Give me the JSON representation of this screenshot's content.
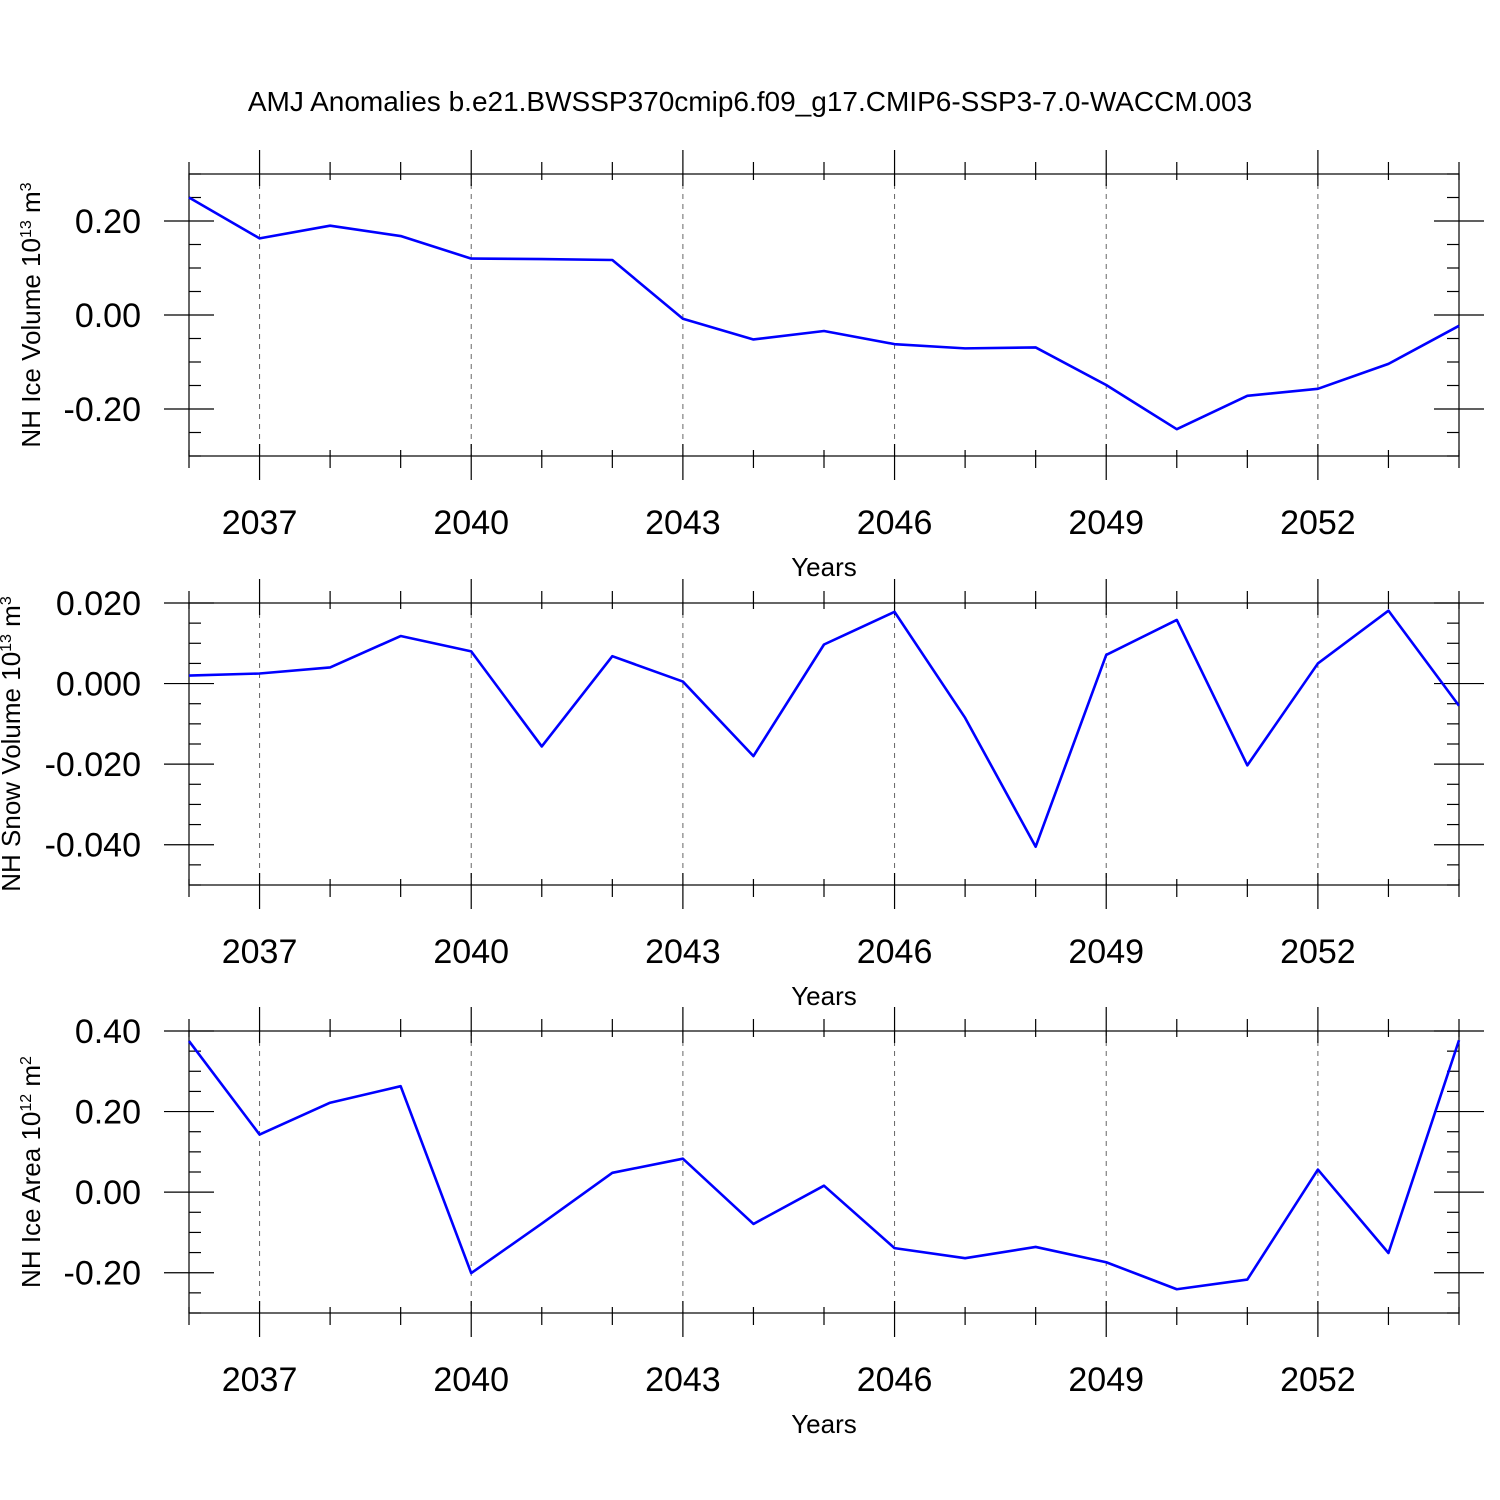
{
  "title": "AMJ Anomalies b.e21.BWSSP370cmip6.f09_g17.CMIP6-SSP3-7.0-WACCM.003",
  "chart_data": [
    {
      "type": "line",
      "title": "AMJ Anomalies b.e21.BWSSP370cmip6.f09_g17.CMIP6-SSP3-7.0-WACCM.003",
      "xlabel": "Years",
      "ylabel": "NH Ice Volume 10",
      "ylabel_exp": "13",
      "ylabel_unit": "m",
      "ylabel_unit_exp": "3",
      "xlim": [
        2036,
        2054
      ],
      "ylim": [
        -0.3,
        0.3
      ],
      "x_ticks": [
        2037,
        2040,
        2043,
        2046,
        2049,
        2052
      ],
      "x_tick_labels": [
        "2037",
        "2040",
        "2043",
        "2046",
        "2049",
        "2052"
      ],
      "y_ticks": [
        -0.2,
        0.0,
        0.2
      ],
      "y_tick_labels": [
        "-0.20",
        "0.00",
        "0.20"
      ],
      "y_minor_step": 0.05,
      "grid": "vertical dashed at major x ticks",
      "x": [
        2036,
        2037,
        2038,
        2039,
        2040,
        2041,
        2042,
        2043,
        2044,
        2045,
        2046,
        2047,
        2048,
        2049,
        2050,
        2051,
        2052,
        2053,
        2054
      ],
      "series": [
        {
          "name": "NH Ice Volume",
          "color": "#0000ff",
          "values": [
            0.25,
            0.163,
            0.19,
            0.168,
            0.12,
            0.119,
            0.117,
            -0.008,
            -0.052,
            -0.034,
            -0.062,
            -0.071,
            -0.069,
            -0.149,
            -0.243,
            -0.172,
            -0.157,
            -0.104,
            -0.023
          ]
        }
      ]
    },
    {
      "type": "line",
      "xlabel": "Years",
      "ylabel": "NH Snow Volume 10",
      "ylabel_exp": "13",
      "ylabel_unit": "m",
      "ylabel_unit_exp": "3",
      "xlim": [
        2036,
        2054
      ],
      "ylim": [
        -0.05,
        0.02
      ],
      "x_ticks": [
        2037,
        2040,
        2043,
        2046,
        2049,
        2052
      ],
      "x_tick_labels": [
        "2037",
        "2040",
        "2043",
        "2046",
        "2049",
        "2052"
      ],
      "y_ticks": [
        -0.04,
        -0.02,
        0.0,
        0.02
      ],
      "y_tick_labels": [
        "-0.040",
        "-0.020",
        "0.000",
        "0.020"
      ],
      "y_minor_step": 0.005,
      "grid": "vertical dashed at major x ticks",
      "x": [
        2036,
        2037,
        2038,
        2039,
        2040,
        2041,
        2042,
        2043,
        2044,
        2045,
        2046,
        2047,
        2048,
        2049,
        2050,
        2051,
        2052,
        2053,
        2054
      ],
      "series": [
        {
          "name": "NH Snow Volume",
          "color": "#0000ff",
          "values": [
            0.002,
            0.0025,
            0.004,
            0.0118,
            0.008,
            -0.0156,
            0.0068,
            0.0005,
            -0.018,
            0.0097,
            0.0178,
            -0.0085,
            -0.0405,
            0.0071,
            0.0158,
            -0.0203,
            0.005,
            0.0181,
            -0.0055
          ]
        }
      ]
    },
    {
      "type": "line",
      "xlabel": "Years",
      "ylabel": "NH Ice Area 10",
      "ylabel_exp": "12",
      "ylabel_unit": "m",
      "ylabel_unit_exp": "2",
      "xlim": [
        2036,
        2054
      ],
      "ylim": [
        -0.3,
        0.4
      ],
      "x_ticks": [
        2037,
        2040,
        2043,
        2046,
        2049,
        2052
      ],
      "x_tick_labels": [
        "2037",
        "2040",
        "2043",
        "2046",
        "2049",
        "2052"
      ],
      "y_ticks": [
        -0.2,
        0.0,
        0.2,
        0.4
      ],
      "y_tick_labels": [
        "-0.20",
        "0.00",
        "0.20",
        "0.40"
      ],
      "y_minor_step": 0.05,
      "grid": "vertical dashed at major x ticks",
      "x": [
        2036,
        2037,
        2038,
        2039,
        2040,
        2041,
        2042,
        2043,
        2044,
        2045,
        2046,
        2047,
        2048,
        2049,
        2050,
        2051,
        2052,
        2053,
        2054
      ],
      "series": [
        {
          "name": "NH Ice Area",
          "color": "#0000ff",
          "values": [
            0.375,
            0.143,
            0.222,
            0.263,
            -0.201,
            -0.078,
            0.048,
            0.083,
            -0.079,
            0.016,
            -0.139,
            -0.164,
            -0.136,
            -0.174,
            -0.241,
            -0.217,
            0.056,
            -0.151,
            0.377
          ]
        }
      ]
    }
  ]
}
